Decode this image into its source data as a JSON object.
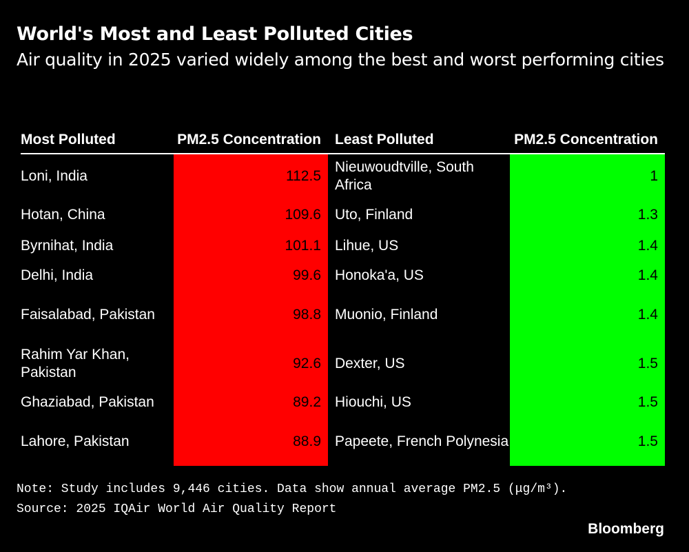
{
  "header": {
    "title": "World's Most and Least Polluted Cities",
    "subtitle": "Air quality in 2025 varied widely among the best and worst performing cities"
  },
  "table": {
    "columns": [
      "Most Polluted",
      "PM2.5 Concentration",
      "Least Polluted",
      "PM2.5 Concentration"
    ],
    "rows": [
      [
        "Loni, India",
        112.5,
        "Nieuwoudtville, South Africa",
        1
      ],
      [
        "Hotan, China",
        109.6,
        "Uto, Finland",
        1.3
      ],
      [
        "Byrnihat, India",
        101.1,
        "Lihue, US",
        1.4
      ],
      [
        "Delhi, India",
        99.6,
        "Honoka'a, US",
        1.4
      ],
      [
        "Faisalabad, Pakistan",
        98.8,
        "Muonio, Finland",
        1.4
      ],
      [
        "Rahim Yar Khan, Pakistan",
        92.6,
        "Dexter, US",
        1.5
      ],
      [
        "Ghaziabad, Pakistan",
        89.2,
        "Hiouchi, US",
        1.5
      ],
      [
        "Lahore, Pakistan",
        88.9,
        "Papeete, French Polynesia",
        1.5
      ]
    ]
  },
  "footer": {
    "note": "Note: Study includes 9,446 cities. Data show annual average PM2.5 (μg/m³).",
    "source": "Source: 2025 IQAir World Air Quality Report",
    "brand": "Bloomberg"
  }
}
